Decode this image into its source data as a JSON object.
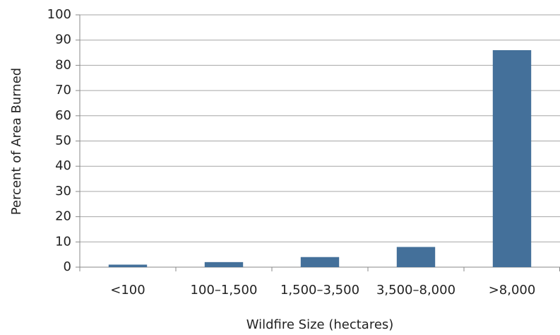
{
  "chart_data": {
    "type": "bar",
    "x_label": "Wildfire Size (hectares)",
    "y_label": "Percent of Area Burned",
    "categories": [
      "<100",
      "100–1,500",
      "1,500–3,500",
      "3,500–8,000",
      ">8,000"
    ],
    "values": [
      1,
      2,
      4,
      8,
      86
    ],
    "color": "#44709a",
    "ylim": [
      0,
      100
    ],
    "yticks": [
      0,
      10,
      20,
      30,
      40,
      50,
      60,
      70,
      80,
      90,
      100
    ],
    "grid": true
  }
}
